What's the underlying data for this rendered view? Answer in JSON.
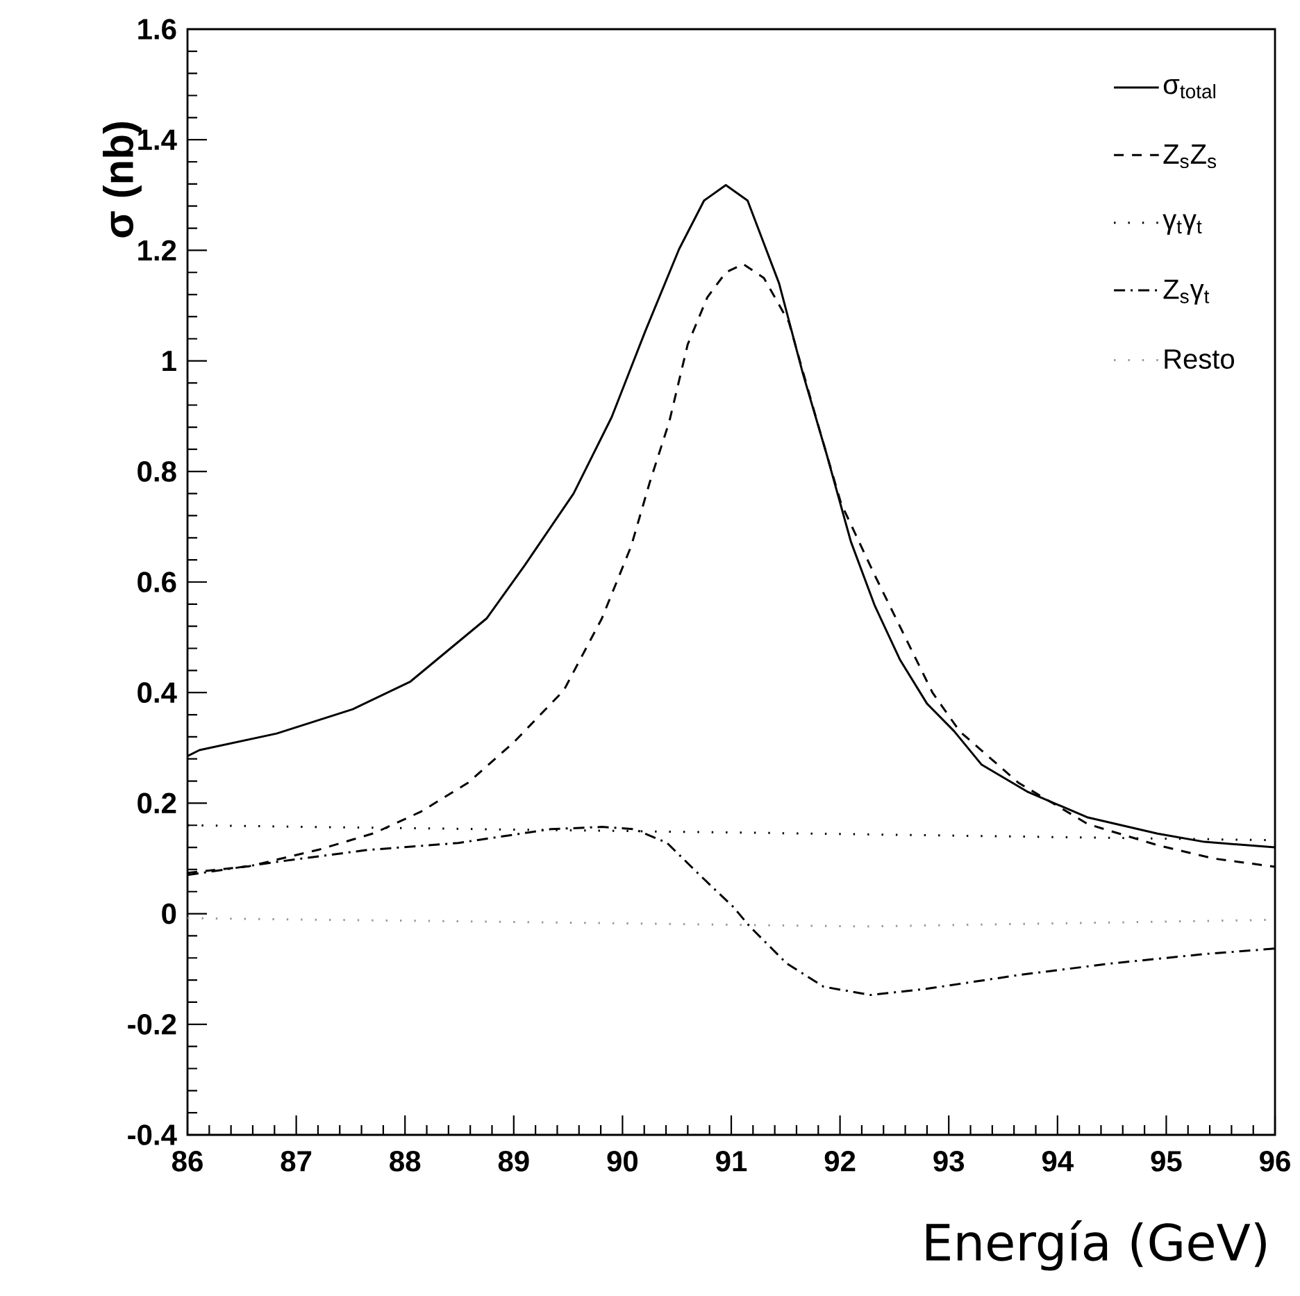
{
  "chart_data": {
    "type": "line",
    "xlabel": "Energía (GeV)",
    "ylabel": "σ (nb)",
    "xlim": [
      86,
      96
    ],
    "ylim": [
      -0.4,
      1.6
    ],
    "xticks": [
      86,
      87,
      88,
      89,
      90,
      91,
      92,
      93,
      94,
      95,
      96
    ],
    "yticks": [
      -0.4,
      -0.2,
      0,
      0.2,
      0.4,
      0.6,
      0.8,
      1,
      1.2,
      1.4,
      1.6
    ],
    "legend": "top right",
    "series": [
      {
        "name": "σ$_{total}$",
        "color": "#000000",
        "line_style": "solid",
        "x": [
          86,
          86.11,
          86.82,
          87.52,
          88.05,
          88.75,
          89.1,
          89.55,
          89.9,
          90.21,
          90.52,
          90.75,
          90.95,
          91.15,
          91.44,
          91.66,
          91.88,
          92.1,
          92.32,
          92.55,
          92.8,
          93.05,
          93.3,
          93.73,
          94.28,
          94.92,
          95.35,
          96
        ],
        "values": [
          0.285,
          0.296,
          0.326,
          0.37,
          0.42,
          0.534,
          0.63,
          0.76,
          0.898,
          1.054,
          1.202,
          1.29,
          1.318,
          1.29,
          1.14,
          0.976,
          0.829,
          0.673,
          0.557,
          0.46,
          0.38,
          0.33,
          0.27,
          0.22,
          0.174,
          0.145,
          0.13,
          0.12
        ]
      },
      {
        "name": "Z$_{s}$Z$_{s}$",
        "color": "#000000",
        "line_style": "dashed",
        "x": [
          86,
          86.57,
          87.21,
          87.72,
          88.15,
          88.58,
          89.0,
          89.46,
          89.81,
          90.08,
          90.25,
          90.43,
          90.6,
          90.78,
          90.95,
          91.11,
          91.3,
          91.53,
          91.79,
          92.01,
          92.32,
          92.6,
          92.85,
          93.1,
          93.64,
          94.28,
          94.92,
          95.43,
          96
        ],
        "values": [
          0.074,
          0.086,
          0.116,
          0.146,
          0.185,
          0.237,
          0.31,
          0.404,
          0.534,
          0.665,
          0.78,
          0.89,
          1.03,
          1.115,
          1.16,
          1.175,
          1.15,
          1.07,
          0.89,
          0.742,
          0.612,
          0.5,
          0.4,
          0.33,
          0.237,
          0.162,
          0.124,
          0.1,
          0.085
        ]
      },
      {
        "name": "γ$_{t}$γ$_{t}$",
        "color": "#000000",
        "line_style": "dotted",
        "x": [
          86,
          91,
          96
        ],
        "values": [
          0.16,
          0.147,
          0.133
        ]
      },
      {
        "name": "Z$_{s}$γ$_{t}$",
        "color": "#000000",
        "line_style": "dashdot",
        "x": [
          86,
          86.79,
          87.64,
          88.49,
          89.34,
          89.81,
          90.11,
          90.41,
          90.71,
          91.02,
          91.17,
          91.51,
          91.85,
          92.28,
          92.79,
          93.64,
          94.49,
          95.35,
          96
        ],
        "values": [
          0.07,
          0.093,
          0.115,
          0.128,
          0.153,
          0.157,
          0.153,
          0.128,
          0.07,
          0.012,
          -0.023,
          -0.09,
          -0.132,
          -0.147,
          -0.136,
          -0.111,
          -0.09,
          -0.073,
          -0.063
        ]
      },
      {
        "name": "Resto",
        "color": "#999999",
        "line_style": "dotted",
        "x": [
          86,
          89,
          92.24,
          96
        ],
        "values": [
          -0.008,
          -0.015,
          -0.023,
          -0.011
        ]
      }
    ]
  }
}
